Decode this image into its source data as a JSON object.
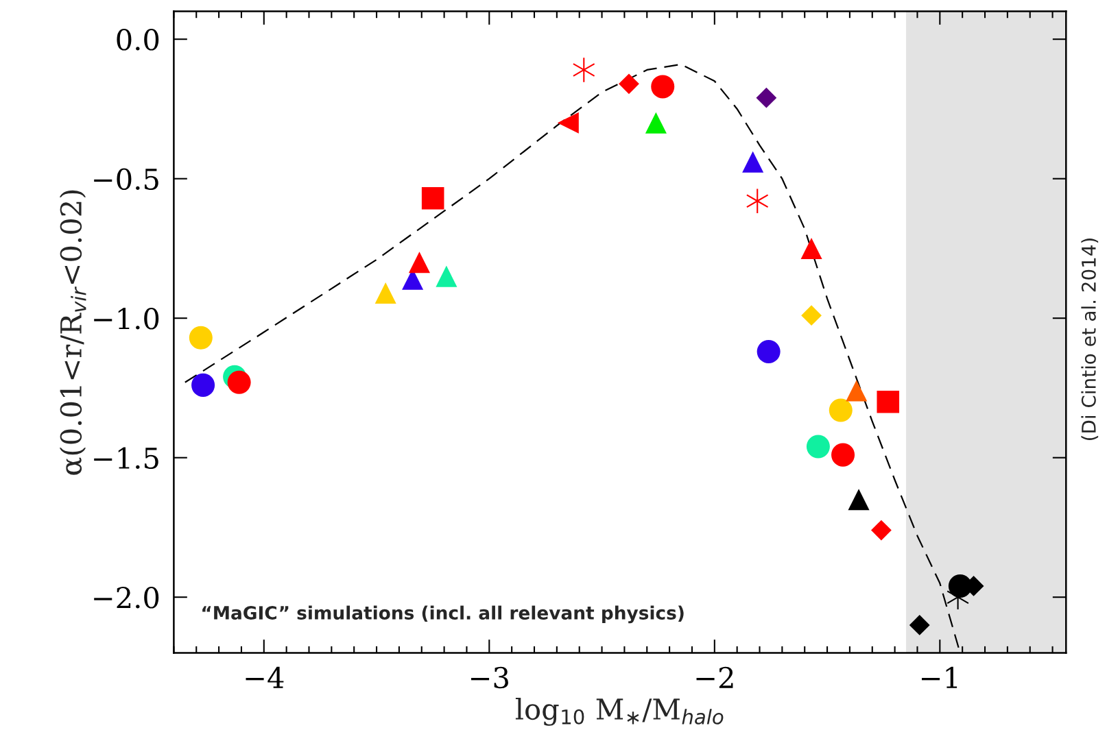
{
  "chart_data": {
    "type": "scatter",
    "xlabel": "log$_{10}$ M$_{∗}$/M$_{halo}$",
    "ylabel": "α(0.01<r/R$_{vir}$<0.02)",
    "xlim": [
      -4.4,
      -0.44
    ],
    "ylim": [
      -2.2,
      0.1
    ],
    "xticks": [
      {
        "value": -4,
        "label": "−4"
      },
      {
        "value": -3,
        "label": "−3"
      },
      {
        "value": -2,
        "label": "−2"
      },
      {
        "value": -1,
        "label": "−1"
      }
    ],
    "yticks": [
      {
        "value": -2.0,
        "label": "−2.0"
      },
      {
        "value": -1.5,
        "label": "−1.5"
      },
      {
        "value": -1.0,
        "label": "−1.0"
      },
      {
        "value": -0.5,
        "label": "−0.5"
      },
      {
        "value": 0,
        "label": "0.0"
      }
    ],
    "grid": false,
    "legend": false,
    "bands": [
      {
        "axis": "x",
        "from": -1.15,
        "to": -0.44,
        "color": "#e3e3e3"
      }
    ],
    "annotations": [
      "“MaGIC” simulations (incl. all relevant physics)",
      "(Di Cintio et al. 2014)"
    ],
    "series": [
      {
        "type": "line",
        "color": "#000000",
        "line_style": "dashed",
        "marker": "none",
        "x": [
          -4.35,
          -4.0,
          -3.5,
          -3.0,
          -2.7,
          -2.5,
          -2.3,
          -2.15,
          -2.0,
          -1.9,
          -1.8,
          -1.7,
          -1.6,
          -1.5,
          -1.4,
          -1.3,
          -1.2,
          -1.1,
          -1.0,
          -0.91
        ],
        "values": [
          -1.23,
          -1.05,
          -0.79,
          -0.5,
          -0.31,
          -0.19,
          -0.11,
          -0.09,
          -0.15,
          -0.25,
          -0.38,
          -0.5,
          -0.68,
          -0.93,
          -1.15,
          -1.37,
          -1.58,
          -1.78,
          -1.95,
          -2.2
        ]
      },
      {
        "marker": "circle",
        "color": "#ffd000",
        "x": [
          -4.28,
          -1.44
        ],
        "values": [
          -1.07,
          -1.33
        ]
      },
      {
        "type": "scatter",
        "marker": "circle",
        "color": "#3300ee",
        "x": [
          -4.27,
          -1.76
        ],
        "values": [
          -1.24,
          -1.12
        ]
      },
      {
        "type": "scatter",
        "marker": "circle",
        "color": "#10f0a0",
        "x": [
          -4.13,
          -1.54
        ],
        "values": [
          -1.21,
          -1.46
        ]
      },
      {
        "type": "scatter",
        "marker": "circle",
        "color": "#ff0000",
        "x": [
          -4.11,
          -2.23,
          -1.43
        ],
        "values": [
          -1.23,
          -0.17,
          -1.49
        ]
      },
      {
        "type": "scatter",
        "marker": "triangle",
        "color": "#ffd000",
        "x": [
          -3.46
        ],
        "values": [
          -0.91
        ]
      },
      {
        "type": "scatter",
        "marker": "triangle",
        "color": "#3300ee",
        "x": [
          -3.34,
          -1.83
        ],
        "values": [
          -0.86,
          -0.44
        ]
      },
      {
        "type": "scatter",
        "marker": "triangle",
        "color": "#ff0000",
        "x": [
          -3.31,
          -1.57
        ],
        "values": [
          -0.8,
          -0.75
        ]
      },
      {
        "type": "scatter",
        "marker": "triangle",
        "color": "#10f0a0",
        "x": [
          -3.19
        ],
        "values": [
          -0.85
        ]
      },
      {
        "type": "scatter",
        "marker": "triangle",
        "color": "#00ee00",
        "x": [
          -2.26
        ],
        "values": [
          -0.3
        ]
      },
      {
        "type": "scatter",
        "marker": "triangle",
        "color": "#ff6000",
        "x": [
          -1.37
        ],
        "values": [
          -1.26
        ]
      },
      {
        "type": "scatter",
        "marker": "triangle",
        "color": "#000000",
        "x": [
          -1.36
        ],
        "values": [
          -1.65
        ]
      },
      {
        "type": "scatter",
        "marker": "triangle-left",
        "color": "#ff0000",
        "x": [
          -2.65
        ],
        "values": [
          -0.3
        ]
      },
      {
        "type": "scatter",
        "marker": "square",
        "color": "#ff0000",
        "x": [
          -3.25,
          -1.23
        ],
        "values": [
          -0.57,
          -1.3
        ]
      },
      {
        "type": "scatter",
        "marker": "cross",
        "color": "#ff0000",
        "x": [
          -2.58,
          -1.81
        ],
        "values": [
          -0.11,
          -0.58
        ]
      },
      {
        "type": "scatter",
        "marker": "cross",
        "color": "#000000",
        "x": [
          -0.92
        ],
        "values": [
          -2.0
        ]
      },
      {
        "type": "scatter",
        "marker": "diamond",
        "color": "#ff0000",
        "x": [
          -2.38,
          -1.26
        ],
        "values": [
          -0.16,
          -1.76
        ]
      },
      {
        "type": "scatter",
        "marker": "diamond",
        "color": "#5a0080",
        "x": [
          -1.77
        ],
        "values": [
          -0.21
        ]
      },
      {
        "type": "scatter",
        "marker": "diamond",
        "color": "#ffd000",
        "x": [
          -1.57
        ],
        "values": [
          -0.99
        ]
      },
      {
        "type": "scatter",
        "marker": "diamond",
        "color": "#000000",
        "x": [
          -0.85,
          -1.09
        ],
        "values": [
          -1.96,
          -2.1
        ]
      },
      {
        "type": "scatter",
        "marker": "circle",
        "color": "#000000",
        "x": [
          -0.91
        ],
        "values": [
          -1.96
        ]
      }
    ]
  }
}
